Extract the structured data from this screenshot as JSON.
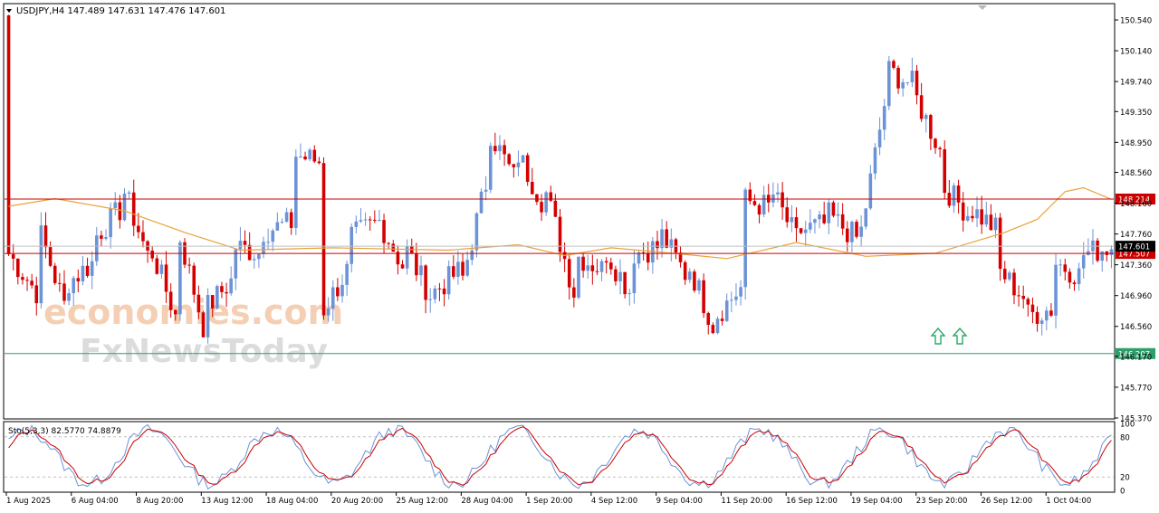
{
  "window": {
    "header": "USDJPY,H4  147.489 147.631 147.476 147.601"
  },
  "watermark": {
    "line1": "economies.com",
    "line2": "FxNewsToday"
  },
  "colors": {
    "bull": "#6b93d6",
    "bear": "#d40000",
    "ma": "#e8a33a",
    "resistance": "#cc0000",
    "support": "#2e9e6a",
    "stoch_main": "#6b93d6",
    "stoch_signal": "#cc0000",
    "arrow": "#2aa86a",
    "price_tag": "#dddddd"
  },
  "chart_data": {
    "type": "candlestick",
    "symbol": "USDJPY",
    "timeframe": "H4",
    "price_ylim": [
      145.37,
      150.74
    ],
    "price_ticks": [
      150.54,
      150.14,
      149.74,
      149.35,
      148.95,
      148.56,
      148.16,
      147.76,
      147.36,
      146.96,
      146.56,
      146.17,
      145.77,
      145.37
    ],
    "price_tick_labels": [
      "150.540",
      "150.140",
      "149.740",
      "149.350",
      "148.950",
      "148.560",
      "148.160",
      "147.760",
      "147.360",
      "146.960",
      "146.560",
      "146.170",
      "145.770",
      "145.370"
    ],
    "x_labels": [
      "1 Aug 2025",
      "6 Aug 04:00",
      "8 Aug 20:00",
      "13 Aug 12:00",
      "18 Aug 04:00",
      "20 Aug 20:00",
      "25 Aug 12:00",
      "28 Aug 04:00",
      "1 Sep 20:00",
      "4 Sep 12:00",
      "9 Sep 04:00",
      "11 Sep 20:00",
      "16 Sep 12:00",
      "19 Sep 04:00",
      "23 Sep 20:00",
      "26 Sep 12:00",
      "1 Oct 04:00"
    ],
    "ohlc_keypoints": [
      [
        150.6,
        147.5
      ],
      [
        147.0,
        147.9
      ],
      [
        146.8,
        147.1
      ],
      [
        147.4,
        147.7
      ],
      [
        148.1,
        148.4
      ],
      [
        147.4,
        147.6
      ],
      [
        146.6,
        147.8
      ],
      [
        146.4,
        146.8
      ],
      [
        147.2,
        147.6
      ],
      [
        147.5,
        147.8
      ],
      [
        147.9,
        148.8
      ],
      [
        148.7,
        146.7
      ],
      [
        147.3,
        147.7
      ],
      [
        147.9,
        148.0
      ],
      [
        147.3,
        147.6
      ],
      [
        146.9,
        147.0
      ],
      [
        147.3,
        147.1
      ],
      [
        148.6,
        149.1
      ],
      [
        148.4,
        148.8
      ],
      [
        148.1,
        148.3
      ],
      [
        147.0,
        147.5
      ],
      [
        147.3,
        147.6
      ],
      [
        147.0,
        147.5
      ],
      [
        147.6,
        147.8
      ],
      [
        147.2,
        147.4
      ],
      [
        146.5,
        146.7
      ],
      [
        147.1,
        148.2
      ],
      [
        148.1,
        148.3
      ],
      [
        147.6,
        147.8
      ],
      [
        147.9,
        148.0
      ],
      [
        147.7,
        147.5
      ],
      [
        149.5,
        149.9
      ],
      [
        149.7,
        149.6
      ],
      [
        148.8,
        148.4
      ],
      [
        148.0,
        148.1
      ],
      [
        147.8,
        147.3
      ],
      [
        146.9,
        146.7
      ],
      [
        146.8,
        147.4
      ],
      [
        147.2,
        147.5
      ],
      [
        147.6,
        147.6
      ]
    ],
    "candle_count": 239,
    "ma_keypoints": [
      [
        0,
        148.12
      ],
      [
        10,
        148.22
      ],
      [
        25,
        148.06
      ],
      [
        38,
        147.78
      ],
      [
        50,
        147.55
      ],
      [
        70,
        147.58
      ],
      [
        95,
        147.55
      ],
      [
        110,
        147.62
      ],
      [
        120,
        147.48
      ],
      [
        130,
        147.58
      ],
      [
        145,
        147.5
      ],
      [
        155,
        147.44
      ],
      [
        170,
        147.65
      ],
      [
        185,
        147.47
      ],
      [
        200,
        147.51
      ],
      [
        215,
        147.78
      ],
      [
        222,
        147.95
      ],
      [
        228,
        148.31
      ],
      [
        232,
        148.36
      ],
      [
        238,
        148.21
      ]
    ],
    "resistance_level": 148.214,
    "resistance_label": "148.214",
    "pivot_level": 147.507,
    "pivot_label": "147.507",
    "support_level": 146.207,
    "support_label": "146.207",
    "current_price": 147.601,
    "current_label": "147.601",
    "stochastic": {
      "label": "Sto(5,3,3) 82.5770 74.8879",
      "main": 82.577,
      "signal": 74.8879,
      "ylim": [
        0,
        100
      ],
      "ticks": [
        100,
        80,
        20,
        0
      ],
      "tick_labels": [
        "100",
        "80",
        "20",
        "0"
      ],
      "levels": [
        80,
        20
      ]
    }
  }
}
